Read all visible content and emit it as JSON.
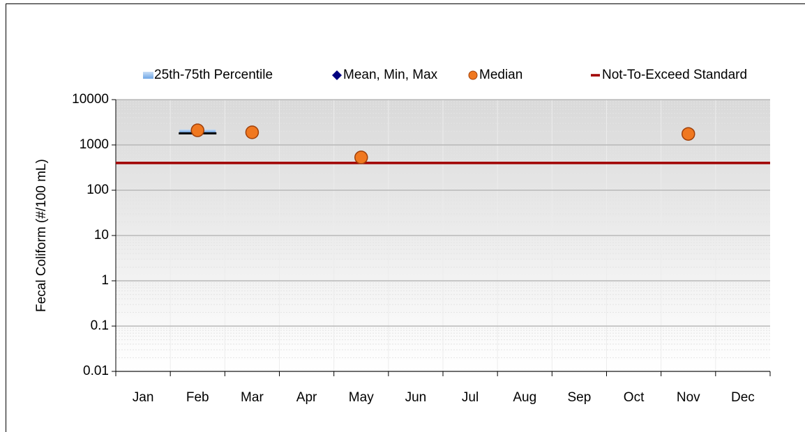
{
  "chart_data": {
    "type": "box",
    "y_label": "Fecal Coliform (#/100 mL)",
    "categories": [
      "Jan",
      "Feb",
      "Mar",
      "Apr",
      "May",
      "Jun",
      "Jul",
      "Aug",
      "Sep",
      "Oct",
      "Nov",
      "Dec"
    ],
    "ylim": [
      0.01,
      10000
    ],
    "yticks": [
      0.01,
      0.1,
      1,
      10,
      100,
      1000,
      10000
    ],
    "log_scale": true,
    "grid": true,
    "legend": "top",
    "series": [
      {
        "name": "25th-75th Percentile",
        "color": "#9cc3ef",
        "low": [
          null,
          1900,
          null,
          null,
          null,
          null,
          null,
          null,
          null,
          null,
          null,
          null
        ],
        "high": [
          null,
          2200,
          null,
          null,
          null,
          null,
          null,
          null,
          null,
          null,
          null,
          null
        ]
      },
      {
        "name": "Mean, Min, Max",
        "color": "#000080",
        "values": [
          null,
          1800,
          null,
          null,
          null,
          null,
          null,
          null,
          null,
          null,
          null,
          null
        ]
      },
      {
        "name": "Median",
        "color": "#f07820",
        "values": [
          null,
          2100,
          1900,
          null,
          530,
          null,
          null,
          null,
          null,
          null,
          1750,
          null
        ]
      },
      {
        "name": "Not-To-Exceed Standard",
        "color": "#a00000",
        "value": 400
      }
    ]
  }
}
